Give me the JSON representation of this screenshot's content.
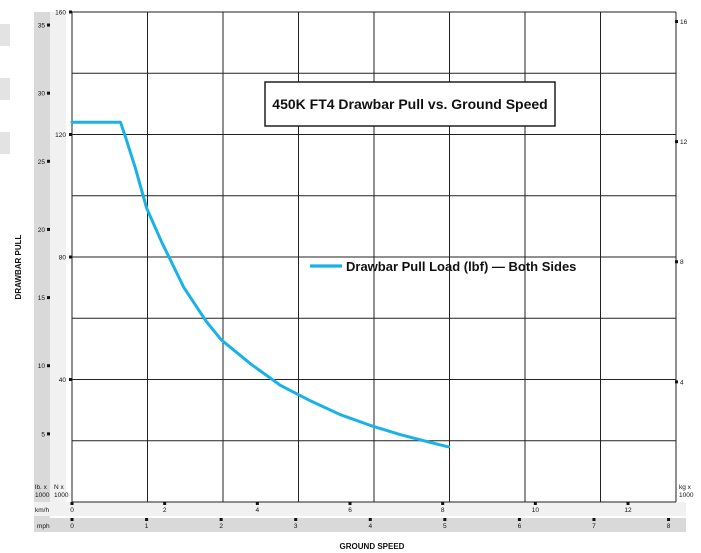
{
  "chart_data": {
    "type": "line",
    "title": "450K FT4 Drawbar Pull vs. Ground Speed",
    "ylabel": "DRAWBAR PULL",
    "xlabel": "GROUND SPEED",
    "grid": true,
    "legend_position": "center-right",
    "line_color": "#19b2e6",
    "unit_labels": {
      "lb": "lb. x\n1000",
      "n": "N x\n1000",
      "kg": "kg x\n1000",
      "kmh": "km/h",
      "mph": "mph"
    },
    "axes": {
      "y_n_ticks": [
        "40",
        "80",
        "120",
        "160"
      ],
      "y_lb_ticks": [
        "5",
        "10",
        "15",
        "20",
        "25",
        "30",
        "35"
      ],
      "y_kg_ticks": [
        "4",
        "8",
        "12",
        "16"
      ],
      "x_kmh_ticks": [
        "0",
        "2",
        "4",
        "6",
        "8",
        "10",
        "12"
      ],
      "x_mph_ticks": [
        "0",
        "1",
        "2",
        "3",
        "4",
        "5",
        "6",
        "7",
        "8"
      ]
    },
    "xlim_mph": [
      0,
      8.1
    ],
    "ylim_n": [
      0,
      160
    ],
    "series": [
      {
        "name": "Drawbar Pull Load (lbf) — Both Sides",
        "x_mph": [
          0,
          0.35,
          0.65,
          0.72,
          0.85,
          1.0,
          1.2,
          1.5,
          1.8,
          2.0,
          2.4,
          2.8,
          3.2,
          3.6,
          4.0,
          4.4,
          4.8,
          5.05
        ],
        "y_n": [
          124,
          124,
          124,
          119,
          109,
          96,
          85,
          70,
          59,
          53,
          45,
          38,
          33,
          28.5,
          25,
          22,
          19.5,
          18
        ]
      }
    ]
  }
}
